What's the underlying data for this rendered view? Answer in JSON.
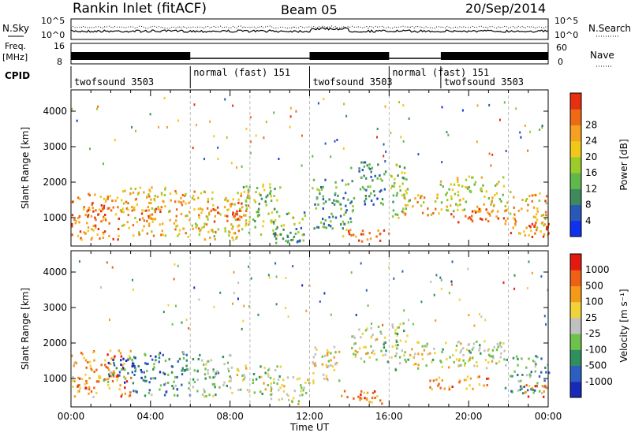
{
  "header": {
    "station": "Rankin Inlet (fitACF)",
    "beam": "Beam 05",
    "date": "20/Sep/2014"
  },
  "noise_panel": {
    "left_label": "N.Sky",
    "right_label": "N.Search",
    "left_ticks": [
      "10^5",
      "10^0"
    ],
    "right_ticks": [
      "10^5",
      "10^0"
    ]
  },
  "freq_panel": {
    "left_label_1": "Freq.",
    "left_label_2": "[MHz]",
    "left_ticks": [
      "16",
      "8"
    ],
    "right_label": "Nave",
    "right_ticks": [
      "60",
      "0"
    ]
  },
  "cpid": {
    "label": "CPID",
    "segments": [
      {
        "start_h": 0.0,
        "end_h": 6.0,
        "name": "twofsound 3503",
        "row": "low"
      },
      {
        "start_h": 6.0,
        "end_h": 12.0,
        "name": "normal (fast) 151",
        "row": "high"
      },
      {
        "start_h": 12.0,
        "end_h": 16.0,
        "name": "twofsound 3503",
        "row": "low"
      },
      {
        "start_h": 16.0,
        "end_h": 18.6,
        "name": "normal (fast) 151",
        "row": "high"
      },
      {
        "start_h": 18.6,
        "end_h": 24.0,
        "name": "twofsound 3503",
        "row": "low"
      }
    ]
  },
  "chart_data": [
    {
      "type": "heatmap",
      "name": "power",
      "xlabel": "",
      "ylabel": "Slant Range [km]",
      "xlim": [
        0,
        24
      ],
      "ylim": [
        200,
        4600
      ],
      "yticks": [
        1000,
        2000,
        3000,
        4000
      ],
      "colorbar": {
        "label": "Power [dB]",
        "ticks": [
          "4",
          "8",
          "12",
          "16",
          "20",
          "24",
          "28"
        ],
        "colors": [
          "#1030f0",
          "#2858b8",
          "#3f8a5c",
          "#5fb84a",
          "#9acb2a",
          "#f2c818",
          "#f5a020",
          "#ee6a14",
          "#e63010"
        ]
      },
      "regions": [
        {
          "x": [
            0.0,
            2.5
          ],
          "y": [
            400,
            1700
          ],
          "level": 0.8
        },
        {
          "x": [
            0.8,
            1.8
          ],
          "y": [
            700,
            1400
          ],
          "level": 0.95
        },
        {
          "x": [
            2.5,
            5.8
          ],
          "y": [
            500,
            1900
          ],
          "level": 0.7
        },
        {
          "x": [
            3.0,
            4.5
          ],
          "y": [
            800,
            1300
          ],
          "level": 0.85
        },
        {
          "x": [
            5.8,
            9.0
          ],
          "y": [
            400,
            1800
          ],
          "level": 0.65
        },
        {
          "x": [
            7.0,
            8.6
          ],
          "y": [
            900,
            1500
          ],
          "level": 0.9
        },
        {
          "x": [
            8.6,
            10.5
          ],
          "y": [
            500,
            2000
          ],
          "level": 0.45
        },
        {
          "x": [
            10.0,
            11.8
          ],
          "y": [
            300,
            1200
          ],
          "level": 0.35
        },
        {
          "x": [
            12.0,
            14.2
          ],
          "y": [
            700,
            2100
          ],
          "level": 0.3
        },
        {
          "x": [
            13.5,
            16.0
          ],
          "y": [
            300,
            700
          ],
          "level": 0.85
        },
        {
          "x": [
            14.0,
            15.8
          ],
          "y": [
            1400,
            2600
          ],
          "level": 0.25
        },
        {
          "x": [
            16.0,
            17.0
          ],
          "y": [
            1000,
            2600
          ],
          "level": 0.45
        },
        {
          "x": [
            16.6,
            18.5
          ],
          "y": [
            1100,
            1700
          ],
          "level": 0.7
        },
        {
          "x": [
            18.5,
            21.8
          ],
          "y": [
            1200,
            2200
          ],
          "level": 0.55
        },
        {
          "x": [
            19.0,
            21.8
          ],
          "y": [
            900,
            1300
          ],
          "level": 0.9
        },
        {
          "x": [
            21.8,
            24.0
          ],
          "y": [
            500,
            1800
          ],
          "level": 0.75
        },
        {
          "x": [
            23.0,
            24.0
          ],
          "y": [
            400,
            900
          ],
          "level": 0.95
        }
      ]
    },
    {
      "type": "heatmap",
      "name": "velocity",
      "xlabel": "Time UT",
      "ylabel": "Slant Range [km]",
      "xlim": [
        0,
        24
      ],
      "ylim": [
        200,
        4600
      ],
      "yticks": [
        1000,
        2000,
        3000,
        4000
      ],
      "xticks": [
        "00:00",
        "04:00",
        "08:00",
        "12:00",
        "16:00",
        "20:00",
        "00:00"
      ],
      "xtick_hours": [
        0,
        4,
        8,
        12,
        16,
        20,
        24
      ],
      "colorbar": {
        "label": "Velocity [m s⁻¹]",
        "ticks": [
          "1000",
          "500",
          "100",
          "25",
          "-25",
          "-100",
          "-500",
          "-1000"
        ],
        "colors": [
          "#1a2ab8",
          "#2e5fc0",
          "#2f8f5e",
          "#6cc24a",
          "#c0c0c0",
          "#f0d23a",
          "#f39a1a",
          "#ee6014",
          "#e41a10"
        ]
      },
      "regions": [
        {
          "x": [
            0.0,
            3.0
          ],
          "y": [
            500,
            1900
          ],
          "level": 0.75
        },
        {
          "x": [
            1.5,
            3.2
          ],
          "y": [
            900,
            1600
          ],
          "level": 0.15
        },
        {
          "x": [
            3.0,
            6.0
          ],
          "y": [
            500,
            1800
          ],
          "level": 0.25
        },
        {
          "x": [
            6.0,
            8.0
          ],
          "y": [
            500,
            1700
          ],
          "level": 0.4
        },
        {
          "x": [
            8.0,
            10.5
          ],
          "y": [
            600,
            1400
          ],
          "level": 0.5
        },
        {
          "x": [
            10.0,
            12.0
          ],
          "y": [
            300,
            1100
          ],
          "level": 0.55
        },
        {
          "x": [
            12.0,
            13.5
          ],
          "y": [
            900,
            2000
          ],
          "level": 0.6
        },
        {
          "x": [
            13.5,
            16.0
          ],
          "y": [
            300,
            700
          ],
          "level": 0.85
        },
        {
          "x": [
            14.0,
            16.0
          ],
          "y": [
            1500,
            2500
          ],
          "level": 0.5
        },
        {
          "x": [
            16.0,
            17.0
          ],
          "y": [
            1200,
            2600
          ],
          "level": 0.45
        },
        {
          "x": [
            16.5,
            21.8
          ],
          "y": [
            1300,
            2100
          ],
          "level": 0.5
        },
        {
          "x": [
            18.0,
            21.0
          ],
          "y": [
            700,
            1100
          ],
          "level": 0.8
        },
        {
          "x": [
            21.8,
            24.0
          ],
          "y": [
            600,
            1700
          ],
          "level": 0.3
        },
        {
          "x": [
            22.5,
            24.0
          ],
          "y": [
            500,
            900
          ],
          "level": 0.8
        }
      ]
    }
  ],
  "data_gaps_h": [
    6.0,
    9.0,
    12.0,
    16.0,
    22.0
  ]
}
